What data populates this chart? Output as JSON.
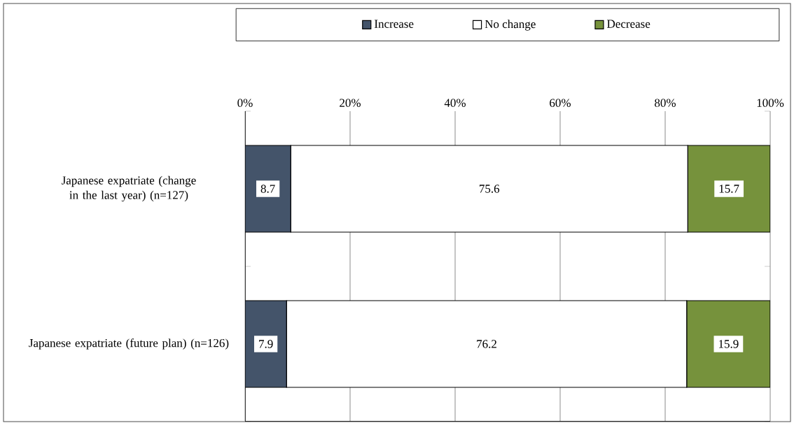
{
  "chart_data": {
    "type": "bar",
    "orientation": "horizontal",
    "stacked": true,
    "categories": [
      "Japanese expatriate (change in the last year) (n=127)",
      "Japanese expatriate (future plan) (n=126)"
    ],
    "series": [
      {
        "name": "Increase",
        "color": "#44546a",
        "values": [
          8.7,
          7.9
        ]
      },
      {
        "name": "No change",
        "color": "#ffffff",
        "values": [
          75.6,
          76.2
        ]
      },
      {
        "name": "Decrease",
        "color": "#76923c",
        "values": [
          15.7,
          15.9
        ]
      }
    ],
    "xlim": [
      0,
      100
    ],
    "xticks": [
      {
        "value": 0,
        "label": "0%"
      },
      {
        "value": 20,
        "label": "20%"
      },
      {
        "value": 40,
        "label": "40%"
      },
      {
        "value": 60,
        "label": "60%"
      },
      {
        "value": 80,
        "label": "80%"
      },
      {
        "value": 100,
        "label": "100%"
      }
    ],
    "grid": "x",
    "legend": "top",
    "data_labels": true
  }
}
